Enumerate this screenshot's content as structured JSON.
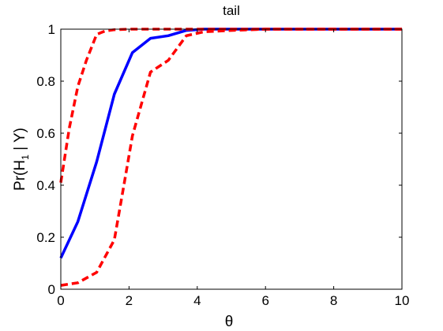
{
  "chart_data": {
    "type": "line",
    "title": "tail",
    "xlabel": "θ",
    "ylabel": "Pr(H",
    "ylabel_subscript": "1",
    "ylabel_suffix": " | Y)",
    "xlim": [
      0,
      10
    ],
    "ylim": [
      0,
      1
    ],
    "xticks": [
      0,
      2,
      4,
      6,
      8,
      10
    ],
    "yticks": [
      0,
      0.2,
      0.4,
      0.6,
      0.8,
      1
    ],
    "xtick_labels": [
      "0",
      "2",
      "4",
      "6",
      "8",
      "10"
    ],
    "ytick_labels": [
      "0",
      "0.2",
      "0.4",
      "0.6",
      "0.8",
      "1"
    ],
    "grid": false,
    "series": [
      {
        "color": "#0000ff",
        "style": "solid",
        "x": [
          0,
          0.5,
          1.05,
          1.57,
          2.1,
          2.63,
          3.15,
          3.68,
          4.2,
          5,
          6,
          7,
          8,
          9,
          10
        ],
        "y": [
          0.12,
          0.26,
          0.49,
          0.75,
          0.91,
          0.965,
          0.975,
          0.995,
          1.0,
          1.0,
          1.0,
          1.0,
          1.0,
          1.0,
          1.0
        ]
      },
      {
        "color": "#ff0000",
        "style": "dashed",
        "x": [
          0,
          0.25,
          0.5,
          0.75,
          1.05,
          1.3,
          1.57,
          2,
          3,
          4,
          6,
          8,
          10
        ],
        "y": [
          0.41,
          0.62,
          0.78,
          0.88,
          0.98,
          0.993,
          0.998,
          1.0,
          1.0,
          1.0,
          1.0,
          1.0,
          1.0
        ]
      },
      {
        "color": "#ff0000",
        "style": "dashed",
        "x": [
          0,
          0.5,
          1.05,
          1.57,
          1.85,
          2.1,
          2.63,
          3.15,
          3.68,
          4.2,
          5,
          6,
          7,
          8,
          9,
          10
        ],
        "y": [
          0.015,
          0.025,
          0.065,
          0.19,
          0.4,
          0.59,
          0.835,
          0.88,
          0.975,
          0.99,
          0.995,
          1.0,
          1.0,
          1.0,
          1.0,
          1.0
        ]
      }
    ]
  }
}
